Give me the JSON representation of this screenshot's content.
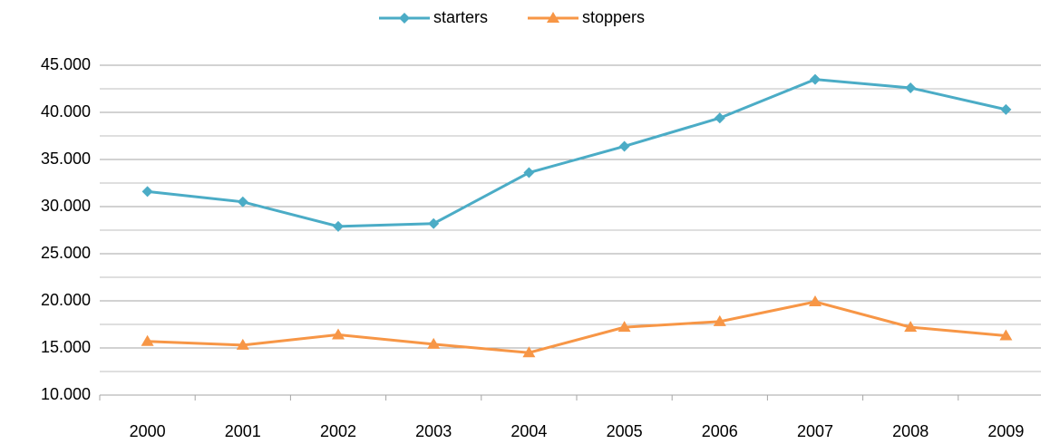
{
  "chart_data": {
    "type": "line",
    "categories": [
      "2000",
      "2001",
      "2002",
      "2003",
      "2004",
      "2005",
      "2006",
      "2007",
      "2008",
      "2009"
    ],
    "series": [
      {
        "name": "starters",
        "color": "#4bacc6",
        "marker": "diamond",
        "values": [
          31600,
          30500,
          27900,
          28200,
          33600,
          36400,
          39400,
          43500,
          42600,
          40300
        ]
      },
      {
        "name": "stoppers",
        "color": "#f79646",
        "marker": "triangle",
        "values": [
          15700,
          15300,
          16400,
          15400,
          14500,
          17200,
          17800,
          19900,
          17200,
          16300
        ]
      }
    ],
    "ylim": [
      10000,
      45000
    ],
    "yticks": [
      {
        "value": 10000,
        "label": "10.000"
      },
      {
        "value": 15000,
        "label": "15.000"
      },
      {
        "value": 20000,
        "label": "20.000"
      },
      {
        "value": 25000,
        "label": "25.000"
      },
      {
        "value": 30000,
        "label": "30.000"
      },
      {
        "value": 35000,
        "label": "35.000"
      },
      {
        "value": 40000,
        "label": "40.000"
      },
      {
        "value": 45000,
        "label": "45.000"
      }
    ],
    "minor_yticks": [
      12500,
      17500,
      22500,
      27500,
      32500,
      37500,
      42500
    ],
    "grid": true,
    "legend": "top"
  }
}
